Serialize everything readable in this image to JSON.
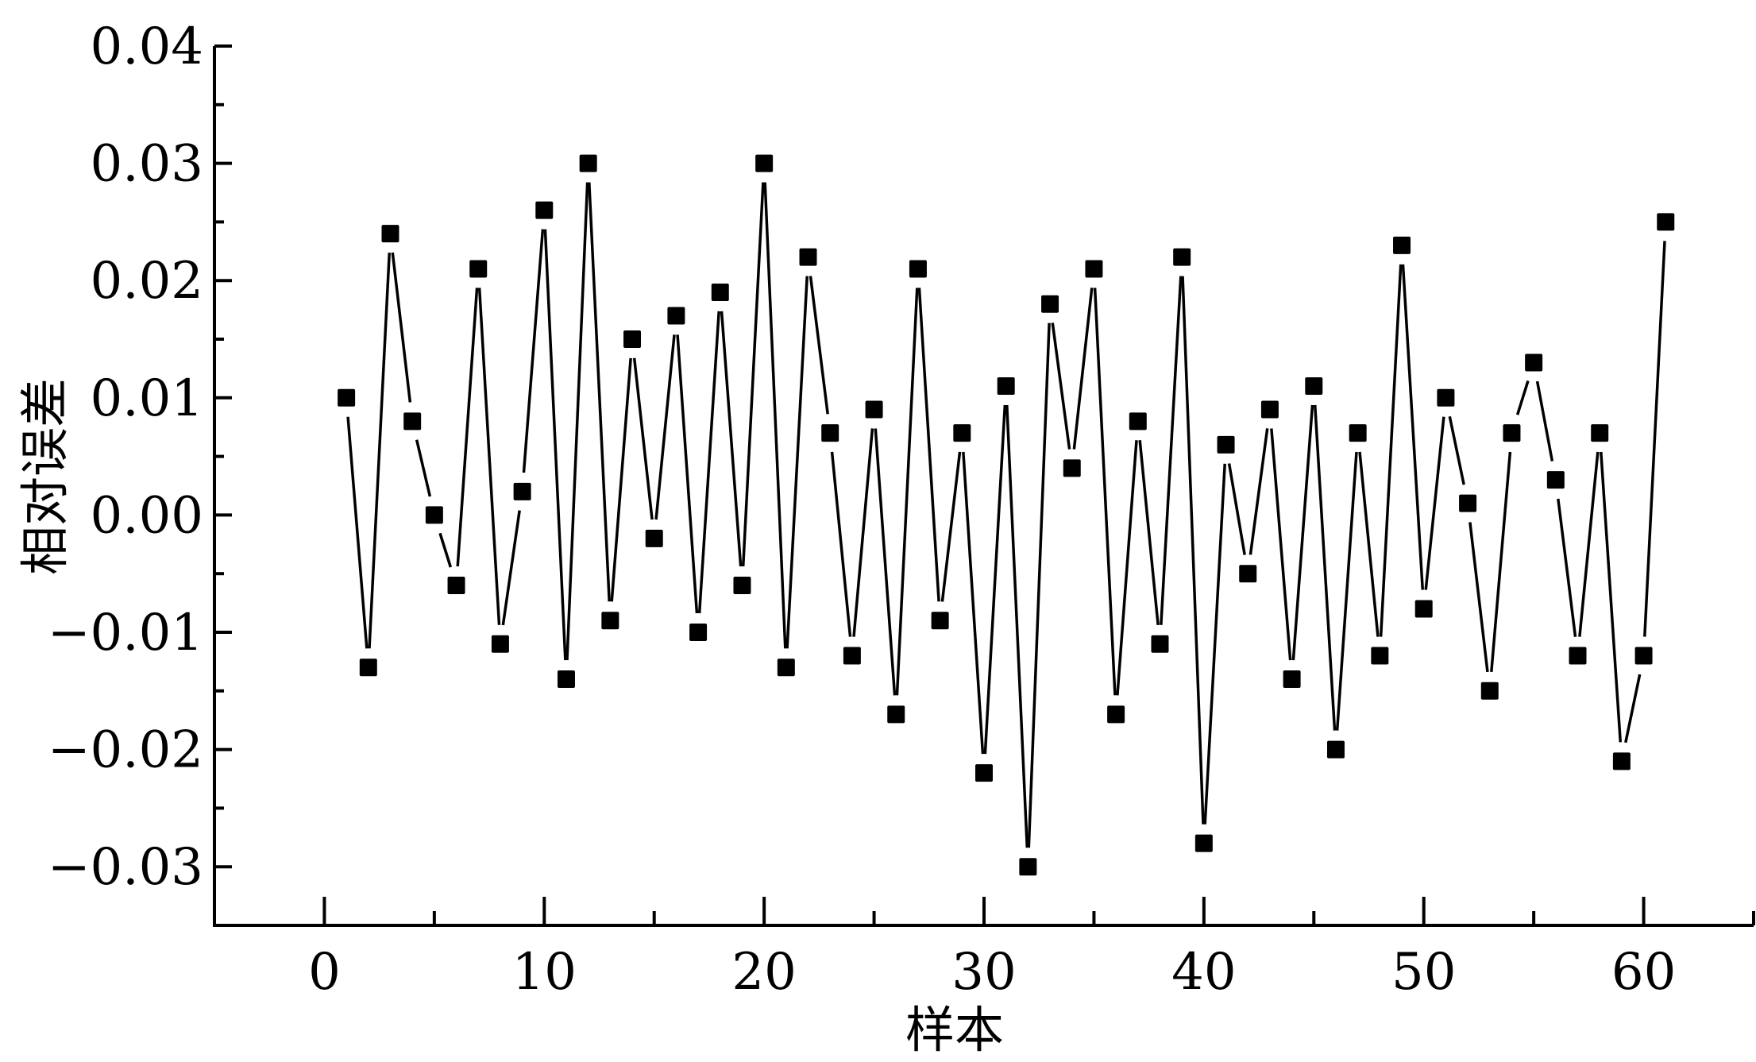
{
  "chart_data": {
    "type": "line",
    "xlabel": "样本",
    "ylabel": "相对误差",
    "xlim": [
      -5,
      65
    ],
    "ylim": [
      -0.035,
      0.04
    ],
    "x_ticks": [
      0,
      10,
      20,
      30,
      40,
      50,
      60
    ],
    "x_tick_labels": [
      "0",
      "10",
      "20",
      "30",
      "40",
      "50",
      "60"
    ],
    "y_ticks": [
      0.04,
      0.03,
      0.02,
      0.01,
      0.0,
      -0.01,
      -0.02,
      -0.03
    ],
    "y_tick_labels": [
      "0.04",
      "0.03",
      "0.02",
      "0.01",
      "0.00",
      "−0.01",
      "−0.02",
      "−0.03"
    ],
    "grid": false,
    "marker": "square",
    "series": [
      {
        "x": [
          1,
          2,
          3,
          4,
          5,
          6,
          7,
          8,
          9,
          10,
          11,
          12,
          13,
          14,
          15,
          16,
          17,
          18,
          19,
          20,
          21,
          22,
          23,
          24,
          25,
          26,
          27,
          28,
          29,
          30,
          31,
          32,
          33,
          34,
          35,
          36,
          37,
          38,
          39,
          40,
          41,
          42,
          43,
          44,
          45,
          46,
          47,
          48,
          49,
          50,
          51,
          52,
          53,
          54,
          55,
          56,
          57,
          58,
          59,
          60,
          61
        ],
        "y": [
          0.01,
          -0.013,
          0.024,
          0.008,
          0.0,
          -0.006,
          0.021,
          -0.011,
          0.002,
          0.026,
          -0.014,
          0.03,
          -0.009,
          0.015,
          -0.002,
          0.017,
          -0.01,
          0.019,
          -0.006,
          0.03,
          -0.013,
          0.022,
          0.007,
          -0.012,
          0.009,
          -0.017,
          0.021,
          -0.009,
          0.007,
          -0.022,
          0.011,
          -0.03,
          0.018,
          0.004,
          0.021,
          -0.017,
          0.008,
          -0.011,
          0.022,
          -0.028,
          0.006,
          -0.005,
          0.009,
          -0.014,
          0.011,
          -0.02,
          0.007,
          -0.012,
          0.023,
          -0.008,
          0.01,
          0.001,
          -0.015,
          0.007,
          0.013,
          0.003,
          -0.012,
          0.007,
          -0.021,
          -0.012,
          0.025
        ]
      }
    ]
  }
}
